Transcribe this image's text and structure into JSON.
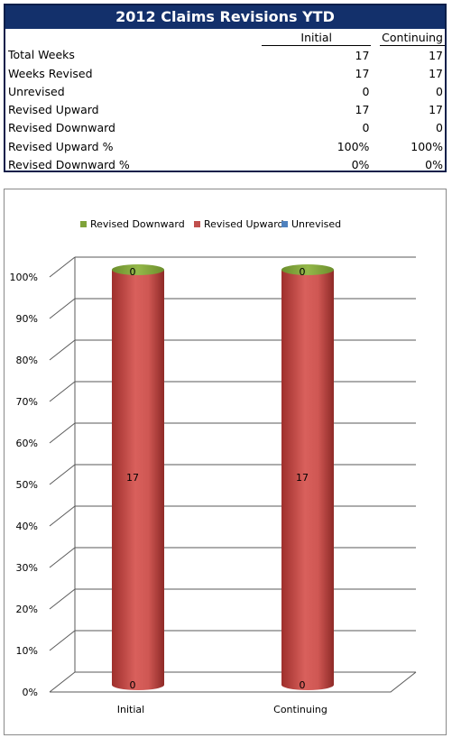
{
  "table": {
    "title": "2012 Claims Revisions YTD",
    "columns": [
      "Initial",
      "Continuing"
    ],
    "rows": [
      {
        "label": "Total Weeks",
        "initial": "17",
        "continuing": "17"
      },
      {
        "label": "Weeks Revised",
        "initial": "17",
        "continuing": "17"
      },
      {
        "label": "Unrevised",
        "initial": "0",
        "continuing": "0"
      },
      {
        "label": "Revised Upward",
        "initial": "17",
        "continuing": "17"
      },
      {
        "label": "Revised Downward",
        "initial": "0",
        "continuing": "0"
      },
      {
        "label": "Revised Upward %",
        "initial": "100%",
        "continuing": "100%"
      },
      {
        "label": "Revised Downward %",
        "initial": "0%",
        "continuing": "0%"
      }
    ]
  },
  "chart_data": {
    "type": "bar",
    "stacked": "100%",
    "shape": "cylinder",
    "categories": [
      "Initial",
      "Continuing"
    ],
    "series": [
      {
        "name": "Revised Downward",
        "values": [
          0,
          0
        ],
        "color": "#7fa33a"
      },
      {
        "name": "Revised Upward",
        "values": [
          17,
          17
        ],
        "color": "#c0504d"
      },
      {
        "name": "Unrevised",
        "values": [
          0,
          0
        ],
        "color": "#4f81bd"
      }
    ],
    "yticks": [
      "0%",
      "10%",
      "20%",
      "30%",
      "40%",
      "50%",
      "60%",
      "70%",
      "80%",
      "90%",
      "100%"
    ],
    "ylim": [
      0,
      100
    ],
    "legend_position": "top",
    "grid": true
  }
}
